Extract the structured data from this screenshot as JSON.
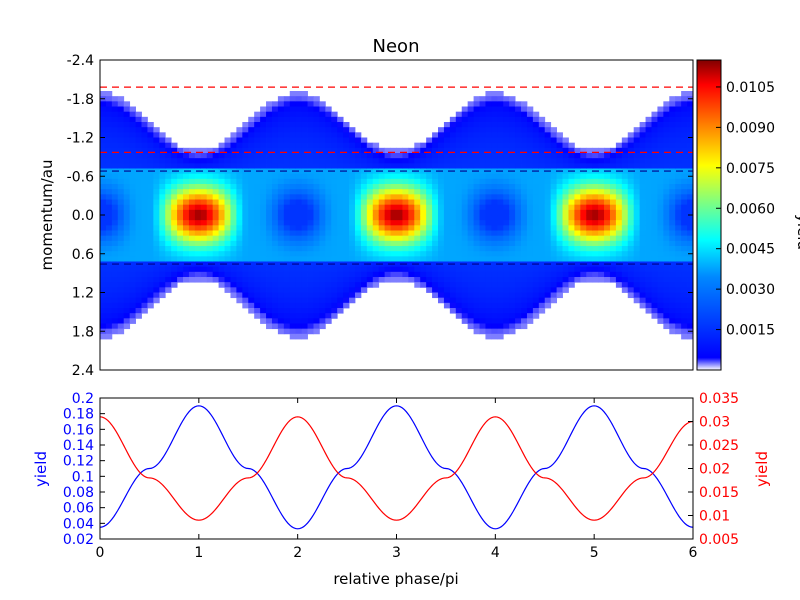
{
  "colors": {
    "blue_axis": "#0000ff",
    "red_axis": "#ff0000",
    "red_dash": "#ff0000",
    "blue_dash": "#00008b"
  },
  "chart_data": [
    {
      "type": "heatmap",
      "title": "Neon",
      "xlabel": "",
      "ylabel": "momentum/au",
      "colorbar_label": "yield",
      "colormap": "jet (white at low end)",
      "xlim": [
        0,
        6
      ],
      "ylim": [
        2.4,
        -2.4
      ],
      "yticks": [
        "-2.4",
        "-1.8",
        "-1.2",
        "-0.6",
        "0.0",
        "0.6",
        "1.2",
        "1.8",
        "2.4"
      ],
      "colorbar_ticks": [
        "0.0015",
        "0.0030",
        "0.0045",
        "0.0060",
        "0.0075",
        "0.0090",
        "0.0105"
      ],
      "colorbar_range": [
        0,
        0.0115
      ],
      "dashed_lines": [
        {
          "y": -1.98,
          "color": "red"
        },
        {
          "y": -0.97,
          "color": "red"
        },
        {
          "y": -0.68,
          "color": "darkblue"
        },
        {
          "y": 0.76,
          "color": "darkblue"
        }
      ]
    },
    {
      "type": "line",
      "xlabel": "relative phase/pi",
      "xlim": [
        0,
        6
      ],
      "xticks": [
        "0",
        "1",
        "2",
        "3",
        "4",
        "5",
        "6"
      ],
      "left_axis": {
        "label": "yield",
        "ylim": [
          0.02,
          0.2
        ],
        "ticks": [
          "0.02",
          "0.04",
          "0.06",
          "0.08",
          "0.1",
          "0.12",
          "0.14",
          "0.16",
          "0.18",
          "0.2"
        ]
      },
      "right_axis": {
        "label": "yield",
        "ylim": [
          0.005,
          0.035
        ],
        "ticks": [
          "0.005",
          "0.01",
          "0.015",
          "0.02",
          "0.025",
          "0.03",
          "0.035"
        ]
      },
      "series": [
        {
          "axis": "left",
          "color": "blue",
          "x": [
            0,
            0.5,
            1,
            1.5,
            2,
            2.5,
            3,
            3.5,
            4,
            4.5,
            5,
            5.5,
            6
          ],
          "values": [
            0.035,
            0.11,
            0.19,
            0.11,
            0.033,
            0.11,
            0.19,
            0.11,
            0.033,
            0.11,
            0.19,
            0.11,
            0.035
          ]
        },
        {
          "axis": "right",
          "color": "red",
          "x": [
            0,
            0.5,
            1,
            1.5,
            2,
            2.5,
            3,
            3.5,
            4,
            4.5,
            5,
            5.5,
            6
          ],
          "values": [
            0.031,
            0.018,
            0.009,
            0.018,
            0.031,
            0.018,
            0.009,
            0.018,
            0.031,
            0.018,
            0.009,
            0.018,
            0.03
          ]
        }
      ]
    }
  ]
}
